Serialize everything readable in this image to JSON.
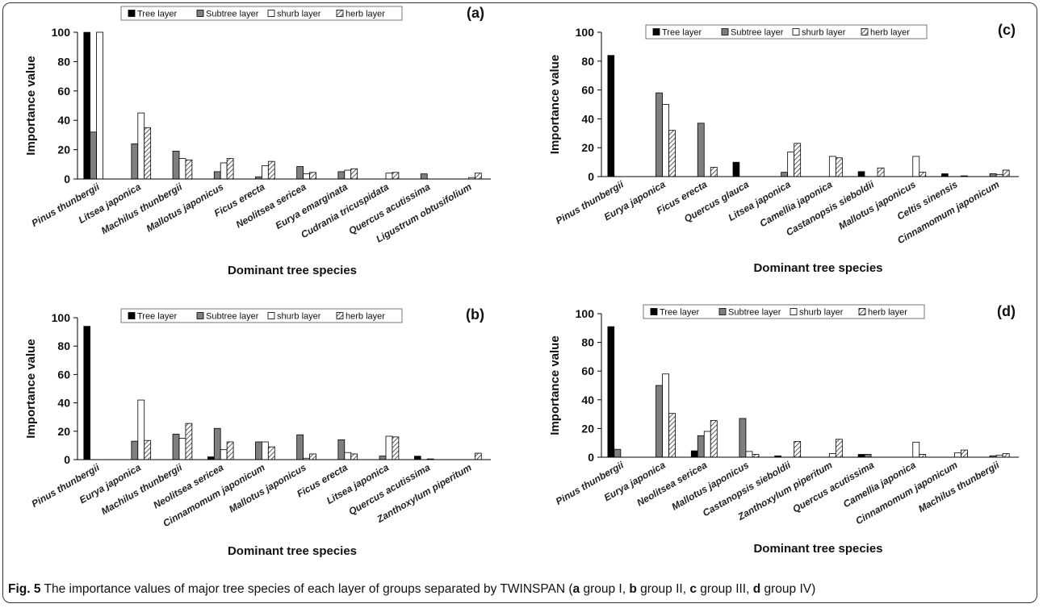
{
  "legend_labels": [
    "Tree layer",
    "Subtree layer",
    "shurb layer",
    "herb layer"
  ],
  "caption": {
    "fig_label": "Fig. 5",
    "segments": [
      {
        "t": " The importance values of major tree species of each layer of groups separated by TWINSPAN (",
        "b": false
      },
      {
        "t": "a",
        "b": true
      },
      {
        "t": " group I, ",
        "b": false
      },
      {
        "t": "b",
        "b": true
      },
      {
        "t": " group II, ",
        "b": false
      },
      {
        "t": "c",
        "b": true
      },
      {
        "t": " group III, ",
        "b": false
      },
      {
        "t": "d",
        "b": true
      },
      {
        "t": " group IV)",
        "b": false
      }
    ]
  },
  "chart_data": [
    {
      "type": "bar",
      "panel_label": "(a)",
      "xlabel": "Dominant tree species",
      "ylabel": "Importance value",
      "ylim": [
        0,
        100
      ],
      "yticks": [
        0,
        20,
        40,
        60,
        80,
        100
      ],
      "legend_position": "top-center",
      "categories": [
        "Pinus thunbergii",
        "Litsea japonica",
        "Machilus thunbergii",
        "Mallotus japonicus",
        "Ficus erecta",
        "Neolitsea sericea",
        "Eurya emarginata",
        "Cudrania tricuspidata",
        "Quercus acutissima",
        "Ligustrum obtusifolium"
      ],
      "series": [
        {
          "name": "Tree layer",
          "values": [
            100,
            0,
            0,
            0,
            0,
            0,
            0,
            0,
            0,
            0
          ]
        },
        {
          "name": "Subtree layer",
          "values": [
            32,
            24,
            19,
            5,
            1.5,
            8.5,
            5,
            0,
            3.5,
            0
          ]
        },
        {
          "name": "shurb layer",
          "values": [
            100,
            45,
            14,
            11,
            9,
            3.5,
            6,
            4,
            0,
            1
          ]
        },
        {
          "name": "herb layer",
          "values": [
            0,
            35,
            13,
            14,
            12,
            4.5,
            7,
            4.5,
            0,
            4
          ]
        }
      ]
    },
    {
      "type": "bar",
      "panel_label": "(c)",
      "xlabel": "Dominant tree species",
      "ylabel": "Importance value",
      "ylim": [
        0,
        100
      ],
      "yticks": [
        0,
        20,
        40,
        60,
        80,
        100
      ],
      "legend_position": "top-center",
      "categories": [
        "Pinus thunbergii",
        "Eurya japonica",
        "Ficus erecta",
        "Quercus glauca",
        "Litsea japonica",
        "Camellia japonica",
        "Castanopsis sieboldii",
        "Mallotus japonicus",
        "Celtis sinensis",
        "Cinnamomum japonicum"
      ],
      "series": [
        {
          "name": "Tree layer",
          "values": [
            84,
            0,
            0,
            10,
            0,
            0,
            3.5,
            0,
            2,
            0
          ]
        },
        {
          "name": "Subtree layer",
          "values": [
            0,
            58,
            37,
            0,
            3,
            0,
            0,
            0,
            0,
            2
          ]
        },
        {
          "name": "shurb layer",
          "values": [
            0,
            50,
            0,
            0,
            17,
            14,
            0,
            14,
            0,
            1.5
          ]
        },
        {
          "name": "herb layer",
          "values": [
            0,
            32,
            6.5,
            0,
            23,
            13,
            6,
            3,
            0.5,
            4.5
          ]
        }
      ]
    },
    {
      "type": "bar",
      "panel_label": "(b)",
      "xlabel": "Dominant tree species",
      "ylabel": "Importance value",
      "ylim": [
        0,
        100
      ],
      "yticks": [
        0,
        20,
        40,
        60,
        80,
        100
      ],
      "legend_position": "top-center",
      "categories": [
        "Pinus thunbergii",
        "Eurya japonica",
        "Machilus thunbergii",
        "Neolitsea sericea",
        "Cinnamomum japonicum",
        "Mallotus japonicus",
        "Ficus erecta",
        "Litsea japonica",
        "Quercus acutissima",
        "Zanthoxylum piperitum"
      ],
      "series": [
        {
          "name": "Tree layer",
          "values": [
            94,
            0,
            0,
            2,
            0,
            0,
            0,
            0,
            2.5,
            0
          ]
        },
        {
          "name": "Subtree layer",
          "values": [
            0,
            13,
            18,
            22,
            12.5,
            17.5,
            14,
            2.5,
            0,
            0
          ]
        },
        {
          "name": "shurb layer",
          "values": [
            0,
            42,
            15,
            7,
            12.5,
            1,
            5,
            16.5,
            0.5,
            0
          ]
        },
        {
          "name": "herb layer",
          "values": [
            0,
            13.5,
            25.5,
            12.5,
            9,
            4,
            4,
            16,
            0,
            4.5
          ]
        }
      ]
    },
    {
      "type": "bar",
      "panel_label": "(d)",
      "xlabel": "Dominant tree species",
      "ylabel": "Importance value",
      "ylim": [
        0,
        100
      ],
      "yticks": [
        0,
        20,
        40,
        60,
        80,
        100
      ],
      "legend_position": "top-center",
      "categories": [
        "Pinus thunbergii",
        "Eurya japonica",
        "Neolitsea sericea",
        "Mallotus japonicus",
        "Castanopsis sieboldii",
        "Zanthoxylum piperitum",
        "Quercus acutissima",
        "Camellia japonica",
        "Cinnamomum japonicum",
        "Machilus thunbergii"
      ],
      "series": [
        {
          "name": "Tree layer",
          "values": [
            91,
            0,
            4.5,
            0,
            1,
            0,
            2,
            0,
            0,
            0
          ]
        },
        {
          "name": "Subtree layer",
          "values": [
            5.5,
            50,
            15,
            27,
            0,
            0,
            2,
            0,
            0,
            1
          ]
        },
        {
          "name": "shurb layer",
          "values": [
            0,
            58,
            18,
            4,
            0,
            2.5,
            0,
            10.5,
            3,
            1.5
          ]
        },
        {
          "name": "herb layer",
          "values": [
            0,
            30.5,
            25.5,
            2,
            11,
            12.5,
            0,
            2,
            5,
            2.5
          ]
        }
      ]
    }
  ]
}
